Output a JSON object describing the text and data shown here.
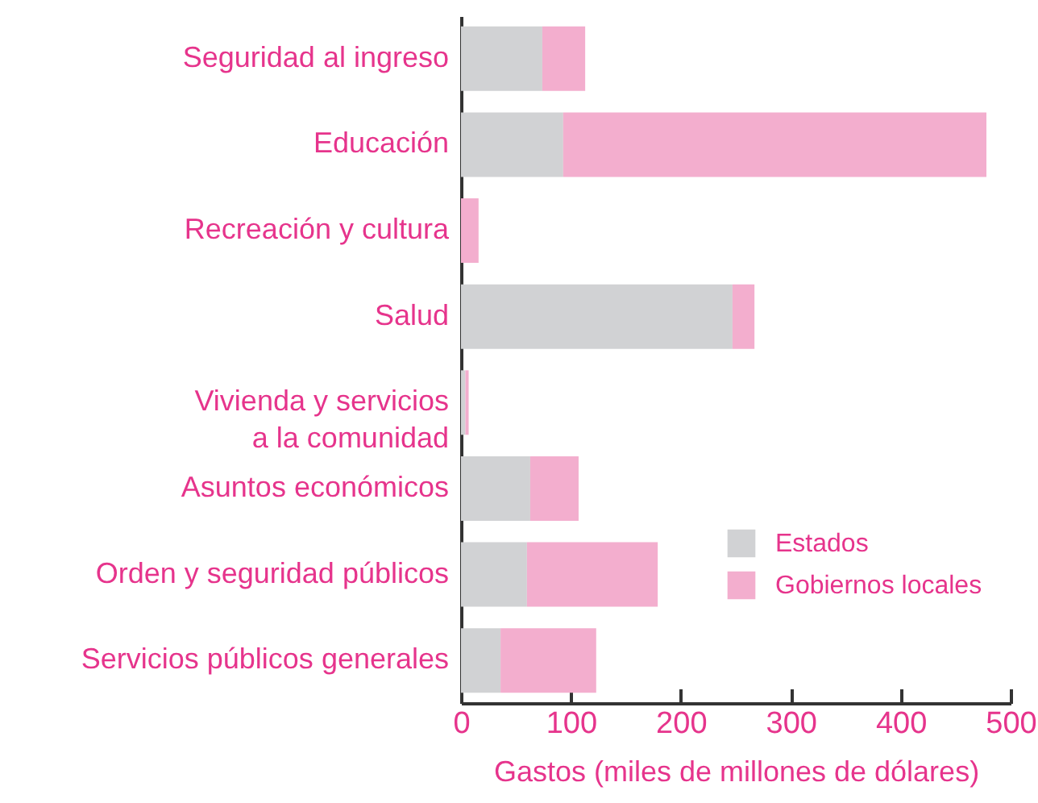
{
  "chart_data": {
    "type": "bar",
    "orientation": "horizontal",
    "stacked": true,
    "categories": [
      "Seguridad al ingreso",
      "Educación",
      "Recreación y cultura",
      "Salud",
      "Vivienda y servicios a la comunidad",
      "Asuntos económicos",
      "Orden y seguridad públicos",
      "Servicios públicos generales"
    ],
    "series": [
      {
        "name": "Estados",
        "color": "#d1d2d4",
        "values": [
          74,
          93,
          null,
          247,
          4,
          63,
          60,
          36
        ]
      },
      {
        "name": "Gobiernos locales",
        "color": "#f3aece",
        "values": [
          39,
          385,
          16,
          20,
          3,
          44,
          119,
          87
        ]
      }
    ],
    "xlabel": "Gastos (miles de millones de dólares)",
    "xlim": [
      0,
      500
    ],
    "xticks": [
      0,
      100,
      200,
      300,
      400,
      500
    ],
    "legend": "bottom right"
  }
}
